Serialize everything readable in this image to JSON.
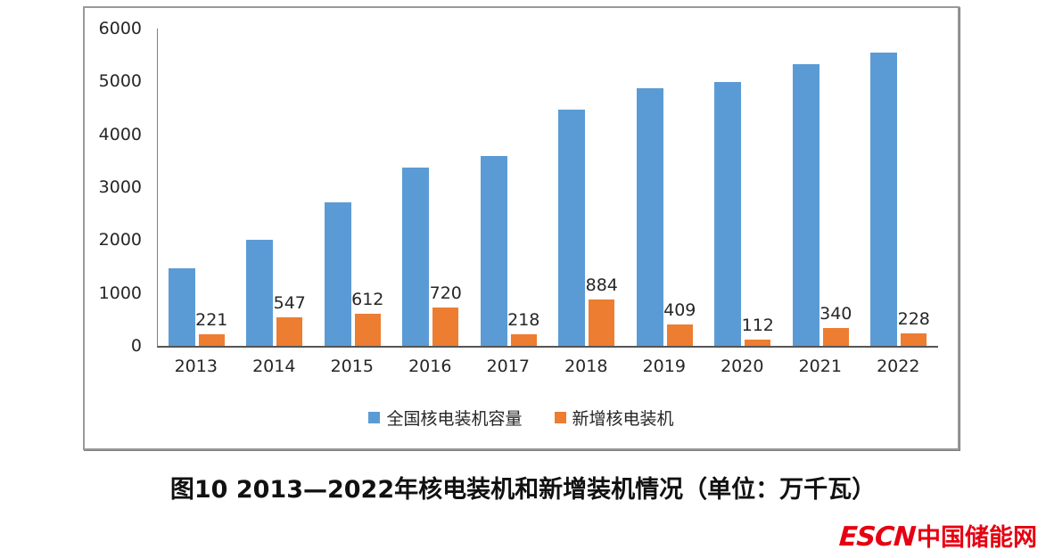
{
  "chart_data": {
    "type": "bar",
    "categories": [
      "2013",
      "2014",
      "2015",
      "2016",
      "2017",
      "2018",
      "2019",
      "2020",
      "2021",
      "2022"
    ],
    "series": [
      {
        "name": "全国核电装机容量",
        "color": "#5B9BD5",
        "values": [
          1461,
          2008,
          2717,
          3364,
          3582,
          4466,
          4874,
          4989,
          5326,
          5553
        ],
        "data_labels_shown": false
      },
      {
        "name": "新增核电装机",
        "color": "#ED7D31",
        "values": [
          221,
          547,
          612,
          720,
          218,
          884,
          409,
          112,
          340,
          228
        ],
        "data_labels_shown": true
      }
    ],
    "title": "",
    "xlabel": "",
    "ylabel": "",
    "ylim": [
      0,
      6000
    ],
    "ytick_interval": 1000,
    "yticks": [
      "6000",
      "5000",
      "4000",
      "3000",
      "2000",
      "1000",
      "0"
    ],
    "grid": false,
    "legend_position": "bottom-center"
  },
  "caption": "图10  2013—2022年核电装机和新增装机情况（单位：万千瓦）",
  "watermark": {
    "brand": "ESCN",
    "site_name": "中国储能网",
    "color": "#e60012"
  },
  "colors": {
    "bar_total": "#5B9BD5",
    "bar_new": "#ED7D31",
    "axis_line": "#808080",
    "baseline": "#555555",
    "text": "#262626",
    "panel_border": "#999999"
  }
}
